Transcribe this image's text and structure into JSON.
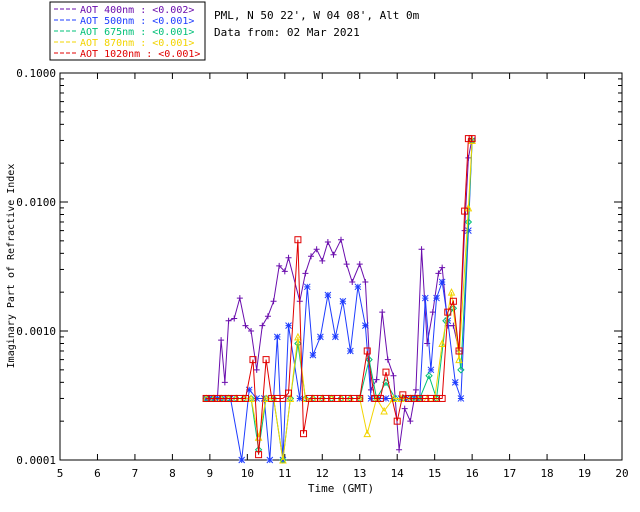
{
  "header": {
    "site": "PML, N 50 22', W 04 08', Alt 0m",
    "date": "Data from: 02 Mar 2021"
  },
  "chart_data": {
    "type": "line",
    "title": "",
    "xlabel": "Time (GMT)",
    "ylabel": "Imaginary Part of Refractive Index",
    "xlim": [
      5,
      20
    ],
    "ylim": [
      0.0001,
      0.1
    ],
    "yscale": "log",
    "x_ticks": [
      "5",
      "6",
      "7",
      "8",
      "9",
      "10",
      "11",
      "12",
      "13",
      "14",
      "15",
      "16",
      "17",
      "18",
      "19",
      "20"
    ],
    "y_ticks": [
      {
        "value": 0.0001,
        "label": "0.0001"
      },
      {
        "value": 0.001,
        "label": "0.0010"
      },
      {
        "value": 0.01,
        "label": "0.0100"
      },
      {
        "value": 0.1,
        "label": "0.1000"
      }
    ],
    "legend_position": "top-left, outside plot",
    "series": [
      {
        "name": "AOT  400nm : <0.002>",
        "color": "#6a0dad",
        "marker": "plus",
        "points": [
          [
            8.9,
            0.0003
          ],
          [
            9.0,
            0.0003
          ],
          [
            9.1,
            0.0003
          ],
          [
            9.2,
            0.0003
          ],
          [
            9.3,
            0.00085
          ],
          [
            9.4,
            0.0004
          ],
          [
            9.5,
            0.0012
          ],
          [
            9.65,
            0.00125
          ],
          [
            9.8,
            0.0018
          ],
          [
            9.95,
            0.0011
          ],
          [
            10.1,
            0.001
          ],
          [
            10.25,
            0.0005
          ],
          [
            10.4,
            0.0011
          ],
          [
            10.55,
            0.0013
          ],
          [
            10.7,
            0.0017
          ],
          [
            10.85,
            0.0032
          ],
          [
            11.0,
            0.0029
          ],
          [
            11.1,
            0.0037
          ],
          [
            11.4,
            0.0017
          ],
          [
            11.55,
            0.0028
          ],
          [
            11.7,
            0.0038
          ],
          [
            11.85,
            0.0043
          ],
          [
            12.0,
            0.0035
          ],
          [
            12.15,
            0.0049
          ],
          [
            12.3,
            0.0039
          ],
          [
            12.5,
            0.0051
          ],
          [
            12.65,
            0.0033
          ],
          [
            12.8,
            0.0024
          ],
          [
            13.0,
            0.0033
          ],
          [
            13.15,
            0.0024
          ],
          [
            13.3,
            0.00035
          ],
          [
            13.45,
            0.00042
          ],
          [
            13.6,
            0.0014
          ],
          [
            13.75,
            0.0006
          ],
          [
            13.9,
            0.00045
          ],
          [
            14.05,
            0.00012
          ],
          [
            14.2,
            0.00025
          ],
          [
            14.35,
            0.0002
          ],
          [
            14.5,
            0.00035
          ],
          [
            14.65,
            0.0043
          ],
          [
            14.8,
            0.0008
          ],
          [
            14.95,
            0.0014
          ],
          [
            15.1,
            0.0028
          ],
          [
            15.2,
            0.0031
          ],
          [
            15.35,
            0.0011
          ],
          [
            15.5,
            0.0011
          ],
          [
            15.65,
            0.0007
          ],
          [
            15.8,
            0.006
          ],
          [
            15.9,
            0.022
          ],
          [
            16.0,
            0.031
          ]
        ]
      },
      {
        "name": "AOT  500nm : <0.001>",
        "color": "#1e3cff",
        "marker": "star",
        "points": [
          [
            8.9,
            0.0003
          ],
          [
            9.0,
            0.0003
          ],
          [
            9.1,
            0.0003
          ],
          [
            9.2,
            0.0003
          ],
          [
            9.35,
            0.0003
          ],
          [
            9.55,
            0.0003
          ],
          [
            9.85,
            0.0001
          ],
          [
            10.05,
            0.00035
          ],
          [
            10.25,
            0.0003
          ],
          [
            10.45,
            0.0003
          ],
          [
            10.6,
            0.0001
          ],
          [
            10.8,
            0.0009
          ],
          [
            10.95,
            0.0001
          ],
          [
            11.1,
            0.0011
          ],
          [
            11.4,
            0.0003
          ],
          [
            11.6,
            0.0022
          ],
          [
            11.75,
            0.00065
          ],
          [
            11.95,
            0.0009
          ],
          [
            12.15,
            0.0019
          ],
          [
            12.35,
            0.0009
          ],
          [
            12.55,
            0.0017
          ],
          [
            12.75,
            0.0007
          ],
          [
            12.95,
            0.0022
          ],
          [
            13.15,
            0.0011
          ],
          [
            13.3,
            0.0003
          ],
          [
            13.5,
            0.0003
          ],
          [
            13.7,
            0.0003
          ],
          [
            13.9,
            0.0003
          ],
          [
            14.1,
            0.0003
          ],
          [
            14.25,
            0.0003
          ],
          [
            14.45,
            0.0003
          ],
          [
            14.6,
            0.0003
          ],
          [
            14.75,
            0.0018
          ],
          [
            14.9,
            0.0005
          ],
          [
            15.05,
            0.0018
          ],
          [
            15.2,
            0.0024
          ],
          [
            15.35,
            0.0012
          ],
          [
            15.55,
            0.0004
          ],
          [
            15.7,
            0.0003
          ],
          [
            15.9,
            0.006
          ],
          [
            16.0,
            0.03
          ]
        ]
      },
      {
        "name": "AOT  675nm : <0.001>",
        "color": "#00c078",
        "marker": "diamond",
        "points": [
          [
            8.9,
            0.0003
          ],
          [
            9.1,
            0.0003
          ],
          [
            9.3,
            0.0003
          ],
          [
            9.5,
            0.0003
          ],
          [
            9.7,
            0.0003
          ],
          [
            9.9,
            0.0003
          ],
          [
            10.1,
            0.0003
          ],
          [
            10.3,
            0.00012
          ],
          [
            10.5,
            0.0003
          ],
          [
            10.7,
            0.0003
          ],
          [
            10.95,
            0.0001
          ],
          [
            11.15,
            0.0003
          ],
          [
            11.35,
            0.0008
          ],
          [
            11.55,
            0.0003
          ],
          [
            11.75,
            0.0003
          ],
          [
            12.0,
            0.0003
          ],
          [
            12.25,
            0.0003
          ],
          [
            12.5,
            0.0003
          ],
          [
            12.75,
            0.0003
          ],
          [
            13.0,
            0.0003
          ],
          [
            13.25,
            0.0006
          ],
          [
            13.45,
            0.0003
          ],
          [
            13.7,
            0.0004
          ],
          [
            13.95,
            0.0003
          ],
          [
            14.15,
            0.0003
          ],
          [
            14.4,
            0.0003
          ],
          [
            14.6,
            0.0003
          ],
          [
            14.85,
            0.00045
          ],
          [
            15.05,
            0.0003
          ],
          [
            15.3,
            0.0012
          ],
          [
            15.5,
            0.0015
          ],
          [
            15.7,
            0.0005
          ],
          [
            15.9,
            0.007
          ],
          [
            16.0,
            0.03
          ]
        ]
      },
      {
        "name": "AOT  870nm : <0.001>",
        "color": "#f2d400",
        "marker": "triangle",
        "points": [
          [
            8.9,
            0.0003
          ],
          [
            9.1,
            0.0003
          ],
          [
            9.3,
            0.0003
          ],
          [
            9.5,
            0.0003
          ],
          [
            9.7,
            0.0003
          ],
          [
            9.9,
            0.0003
          ],
          [
            10.1,
            0.0003
          ],
          [
            10.3,
            0.00015
          ],
          [
            10.5,
            0.0003
          ],
          [
            10.7,
            0.0003
          ],
          [
            10.95,
            0.0001
          ],
          [
            11.15,
            0.0003
          ],
          [
            11.35,
            0.0009
          ],
          [
            11.55,
            0.0003
          ],
          [
            11.75,
            0.0003
          ],
          [
            12.0,
            0.0003
          ],
          [
            12.25,
            0.0003
          ],
          [
            12.5,
            0.0003
          ],
          [
            12.75,
            0.0003
          ],
          [
            13.0,
            0.0003
          ],
          [
            13.2,
            0.00016
          ],
          [
            13.45,
            0.0003
          ],
          [
            13.65,
            0.00024
          ],
          [
            13.9,
            0.0003
          ],
          [
            14.1,
            0.0003
          ],
          [
            14.35,
            0.0003
          ],
          [
            14.55,
            0.0003
          ],
          [
            14.8,
            0.0003
          ],
          [
            15.0,
            0.0003
          ],
          [
            15.2,
            0.0008
          ],
          [
            15.45,
            0.002
          ],
          [
            15.65,
            0.0006
          ],
          [
            15.9,
            0.009
          ],
          [
            16.0,
            0.03
          ]
        ]
      },
      {
        "name": "AOT 1020nm : <0.001>",
        "color": "#e00000",
        "marker": "square",
        "points": [
          [
            8.9,
            0.0003
          ],
          [
            9.05,
            0.0003
          ],
          [
            9.2,
            0.0003
          ],
          [
            9.35,
            0.0003
          ],
          [
            9.5,
            0.0003
          ],
          [
            9.65,
            0.0003
          ],
          [
            9.8,
            0.0003
          ],
          [
            9.95,
            0.0003
          ],
          [
            10.15,
            0.0006
          ],
          [
            10.3,
            0.00011
          ],
          [
            10.5,
            0.0006
          ],
          [
            10.65,
            0.0003
          ],
          [
            10.8,
            0.0003
          ],
          [
            10.95,
            0.0003
          ],
          [
            11.1,
            0.00033
          ],
          [
            11.35,
            0.0051
          ],
          [
            11.5,
            0.00016
          ],
          [
            11.65,
            0.0003
          ],
          [
            11.8,
            0.0003
          ],
          [
            11.95,
            0.0003
          ],
          [
            12.1,
            0.0003
          ],
          [
            12.25,
            0.0003
          ],
          [
            12.4,
            0.0003
          ],
          [
            12.55,
            0.0003
          ],
          [
            12.7,
            0.0003
          ],
          [
            12.85,
            0.0003
          ],
          [
            13.0,
            0.0003
          ],
          [
            13.2,
            0.0007
          ],
          [
            13.4,
            0.0003
          ],
          [
            13.55,
            0.0003
          ],
          [
            13.7,
            0.00048
          ],
          [
            14.0,
            0.0002
          ],
          [
            14.15,
            0.00032
          ],
          [
            14.3,
            0.0003
          ],
          [
            14.45,
            0.0003
          ],
          [
            14.6,
            0.0003
          ],
          [
            14.75,
            0.0003
          ],
          [
            14.9,
            0.0003
          ],
          [
            15.05,
            0.0003
          ],
          [
            15.2,
            0.0003
          ],
          [
            15.35,
            0.0014
          ],
          [
            15.5,
            0.0017
          ],
          [
            15.65,
            0.0007
          ],
          [
            15.8,
            0.0085
          ],
          [
            15.9,
            0.031
          ],
          [
            16.0,
            0.031
          ]
        ]
      }
    ]
  }
}
